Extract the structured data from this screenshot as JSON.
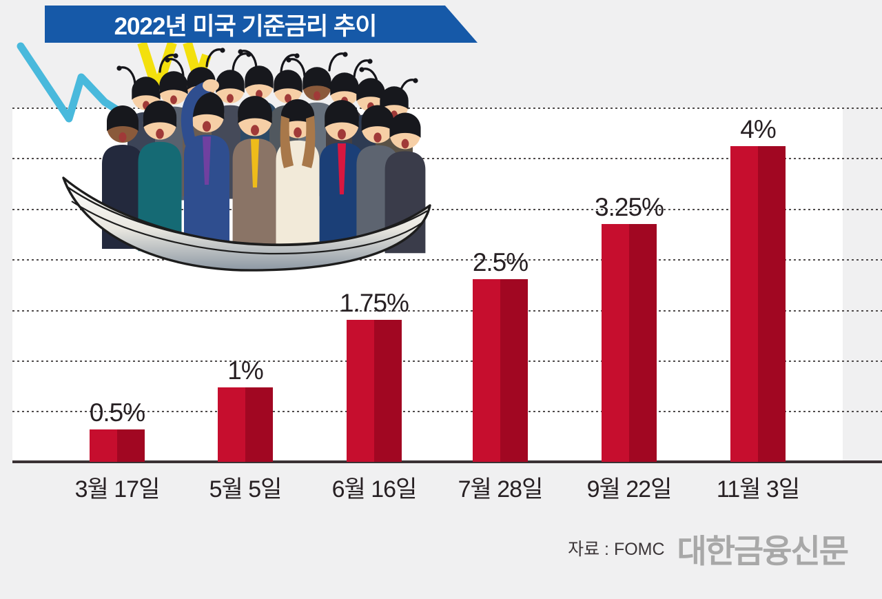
{
  "title": {
    "text": "2022년 미국 기준금리 추이"
  },
  "source": {
    "label": "자료 : FOMC"
  },
  "publisher": {
    "name": "대한금융신문"
  },
  "illustration": {
    "alt": "blindfolded business people crowded in a sinking rowboat with falling chart lines"
  },
  "colors": {
    "banner_blue": "#1659a8",
    "bar_left": "#c60e2e",
    "bar_right": "#a10722",
    "page_bg": "#f0f0f1",
    "plot_bg": "#ffffff",
    "axis": "#3a3134",
    "logo_gray": "#a8a8a8",
    "zigzag_cyan": "#49b9dc",
    "zigzag_yellow": "#f3e00d"
  },
  "chart_data": {
    "type": "bar",
    "title": "2022년 미국 기준금리 추이",
    "categories": [
      "3월 17일",
      "5월 5일",
      "6월 16일",
      "7월 28일",
      "9월 22일",
      "11월 3일"
    ],
    "values": [
      0.5,
      1,
      1.75,
      2.5,
      3.25,
      4
    ],
    "value_labels": [
      "0.5%",
      "1%",
      "1.75%",
      "2.5%",
      "3.25%",
      "4%"
    ],
    "unit": "%",
    "xlabel": "",
    "ylabel": "기준금리",
    "ylim": [
      0,
      4.4
    ],
    "grid": "horizontal dotted gridlines, no y-axis tick labels",
    "legend": "none",
    "bar_style": "two-tone red (lighter left half, darker right half)",
    "source": "자료 : FOMC"
  }
}
